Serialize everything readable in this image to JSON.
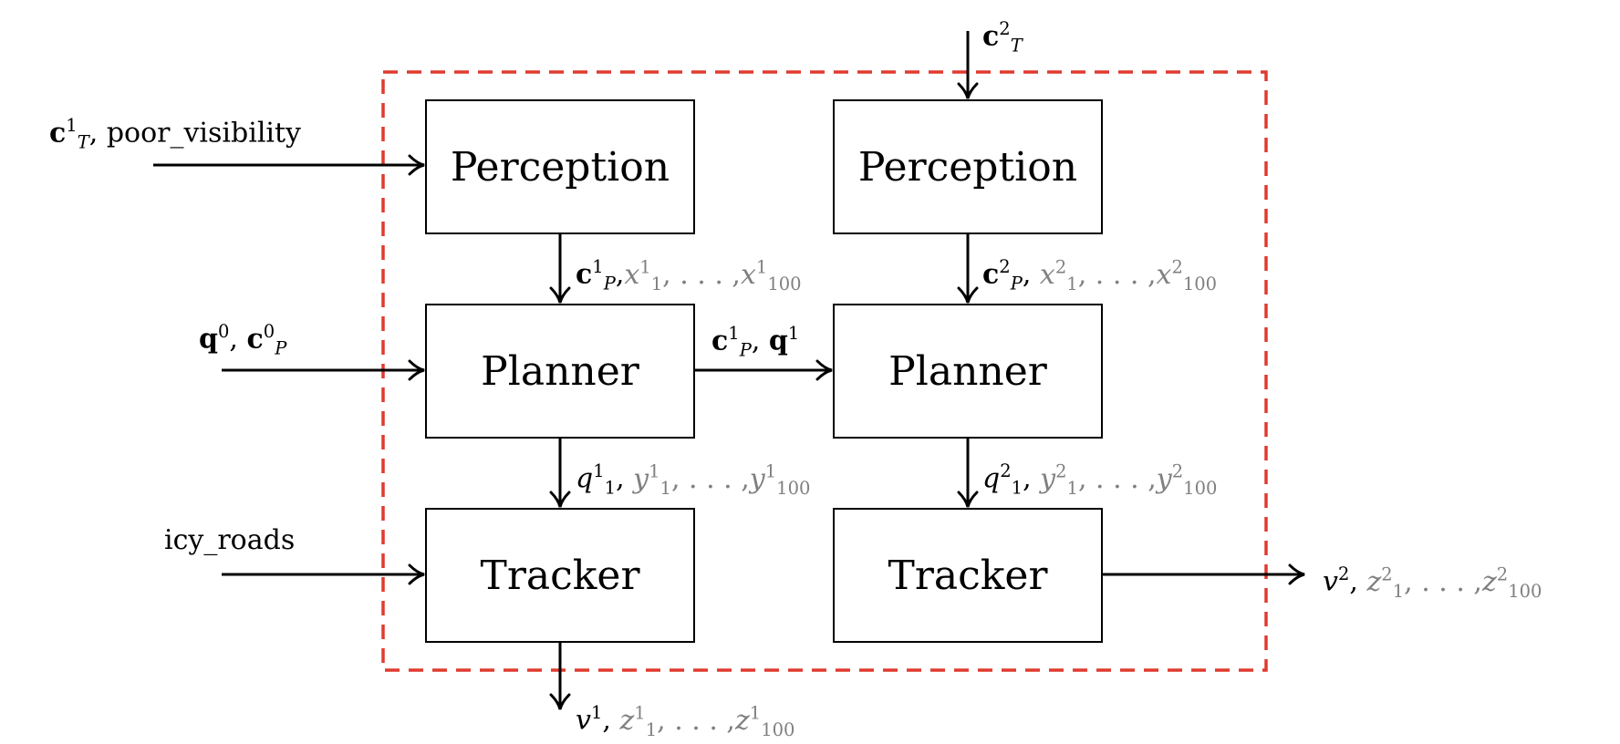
{
  "colors": {
    "boundary": "#e03a2f",
    "grey_text": "#808080",
    "line": "#000000"
  },
  "boxes": {
    "perception_1": "Perception",
    "perception_2": "Perception",
    "planner_1": "Planner",
    "planner_2": "Planner",
    "tracker_1": "Tracker",
    "tracker_2": "Tracker"
  },
  "labels": {
    "in_perception_1": {
      "c": "c",
      "c_sup": "1",
      "c_sub": "T",
      "comma": ",",
      "text": "poor_visibility"
    },
    "in_perception_2": {
      "c": "c",
      "c_sup": "2",
      "c_sub": "T"
    },
    "in_planner_1": {
      "q": "q",
      "q_sup": "0",
      "comma": ",",
      "c": "c",
      "c_sup": "0",
      "c_sub": "P"
    },
    "in_tracker_1": {
      "text": "icy_roads"
    },
    "perception1_to_planner1": {
      "c": "c",
      "c_sup": "1",
      "c_sub": "P",
      "comma": ",",
      "x_first": "x",
      "x_first_sup": "1",
      "x_first_sub": "1",
      "dots": ", . . . ,",
      "x_last": "x",
      "x_last_sup": "1",
      "x_last_sub": "100"
    },
    "perception2_to_planner2": {
      "c": "c",
      "c_sup": "2",
      "c_sub": "P",
      "comma": ",",
      "x_first": "x",
      "x_first_sup": "2",
      "x_first_sub": "1",
      "dots": ", . . . ,",
      "x_last": "x",
      "x_last_sup": "2",
      "x_last_sub": "100"
    },
    "planner1_to_planner2": {
      "c": "c",
      "c_sup": "1",
      "c_sub": "P",
      "comma": ",",
      "q": "q",
      "q_sup": "1"
    },
    "planner1_to_tracker1": {
      "q": "q",
      "q_sup": "1",
      "q_sub": "1",
      "comma": ",",
      "y_first": "y",
      "y_first_sup": "1",
      "y_first_sub": "1",
      "dots": ", . . . ,",
      "y_last": "y",
      "y_last_sup": "1",
      "y_last_sub": "100"
    },
    "planner2_to_tracker2": {
      "q": "q",
      "q_sup": "2",
      "q_sub": "1",
      "comma": ",",
      "y_first": "y",
      "y_first_sup": "2",
      "y_first_sub": "1",
      "dots": ", . . . ,",
      "y_last": "y",
      "y_last_sup": "2",
      "y_last_sub": "100"
    },
    "out_tracker_1": {
      "v": "v",
      "v_sup": "1",
      "comma": ",",
      "z_first": "z",
      "z_first_sup": "1",
      "z_first_sub": "1",
      "dots": ", . . . ,",
      "z_last": "z",
      "z_last_sup": "1",
      "z_last_sub": "100"
    },
    "out_tracker_2": {
      "v": "v",
      "v_sup": "2",
      "comma": ",",
      "z_first": "z",
      "z_first_sup": "2",
      "z_first_sub": "1",
      "dots": ", . . . ,",
      "z_last": "z",
      "z_last_sup": "2",
      "z_last_sub": "100"
    }
  }
}
